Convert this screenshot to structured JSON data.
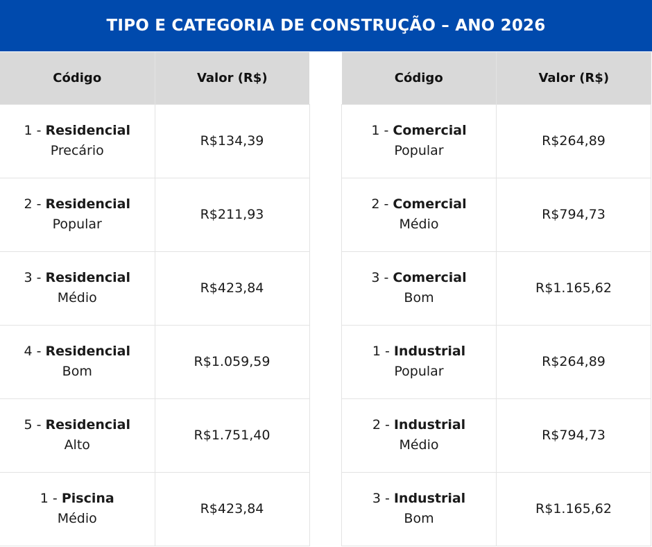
{
  "title": "TIPO E CATEGORIA DE CONSTRUÇÃO – ANO 2026",
  "colors": {
    "banner": "#004aad",
    "header_bg": "#d9d9d9",
    "grid": "#e3e3e3"
  },
  "tables": [
    {
      "headers": {
        "code": "Código",
        "value": "Valor (R$)"
      },
      "rows": [
        {
          "num": "1 - ",
          "type": "Residencial",
          "category": "Precário",
          "value": "R$134,39"
        },
        {
          "num": "2 - ",
          "type": "Residencial",
          "category": "Popular",
          "value": "R$211,93"
        },
        {
          "num": "3 - ",
          "type": "Residencial",
          "category": "Médio",
          "value": "R$423,84"
        },
        {
          "num": "4 - ",
          "type": "Residencial",
          "category": "Bom",
          "value": "R$1.059,59"
        },
        {
          "num": "5 - ",
          "type": "Residencial",
          "category": "Alto",
          "value": "R$1.751,40"
        },
        {
          "num": "1 - ",
          "type": "Piscina",
          "category": "Médio",
          "value": "R$423,84"
        }
      ]
    },
    {
      "headers": {
        "code": "Código",
        "value": "Valor (R$)"
      },
      "rows": [
        {
          "num": "1 - ",
          "type": "Comercial",
          "category": "Popular",
          "value": "R$264,89"
        },
        {
          "num": "2 - ",
          "type": "Comercial",
          "category": "Médio",
          "value": "R$794,73"
        },
        {
          "num": "3 - ",
          "type": "Comercial",
          "category": "Bom",
          "value": "R$1.165,62"
        },
        {
          "num": "1 - ",
          "type": "Industrial",
          "category": "Popular",
          "value": "R$264,89"
        },
        {
          "num": "2 - ",
          "type": "Industrial",
          "category": "Médio",
          "value": "R$794,73"
        },
        {
          "num": "3 - ",
          "type": "Industrial",
          "category": "Bom",
          "value": "R$1.165,62"
        }
      ]
    }
  ]
}
